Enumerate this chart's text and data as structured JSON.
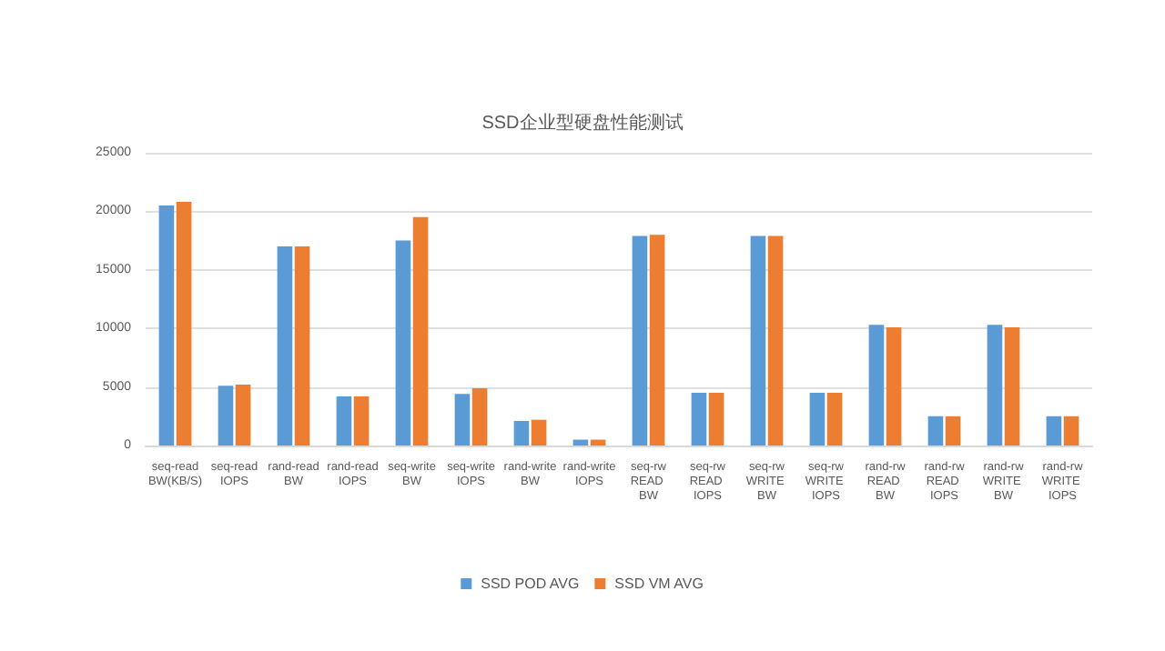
{
  "chart_data": {
    "type": "bar",
    "title": "SSD企业型硬盘性能测试",
    "categories": [
      "seq-read BW(KB/S)",
      "seq-read IOPS",
      "rand-read BW",
      "rand-read IOPS",
      "seq-write BW",
      "seq-write IOPS",
      "rand-write BW",
      "rand-write IOPS",
      "seq-rw READ BW",
      "seq-rw READ IOPS",
      "seq-rw WRITE BW",
      "seq-rw WRITE IOPS",
      "rand-rw READ BW",
      "rand-rw READ IOPS",
      "rand-rw WRITE BW",
      "rand-rw WRITE IOPS"
    ],
    "series": [
      {
        "name": "SSD POD AVG",
        "color": "#5b9bd5",
        "values": [
          20500,
          5100,
          17000,
          4200,
          17500,
          4400,
          2100,
          500,
          17900,
          4500,
          17900,
          4500,
          10300,
          2500,
          10300,
          2500
        ]
      },
      {
        "name": "SSD VM AVG",
        "color": "#ed7d31",
        "values": [
          20800,
          5200,
          17000,
          4200,
          19500,
          4900,
          2200,
          500,
          18000,
          4500,
          17900,
          4500,
          10100,
          2500,
          10100,
          2500
        ]
      }
    ],
    "ylim": [
      0,
      25000
    ],
    "yticks": [
      0,
      5000,
      10000,
      15000,
      20000,
      25000
    ],
    "grid": "y",
    "legend": "bottom"
  }
}
